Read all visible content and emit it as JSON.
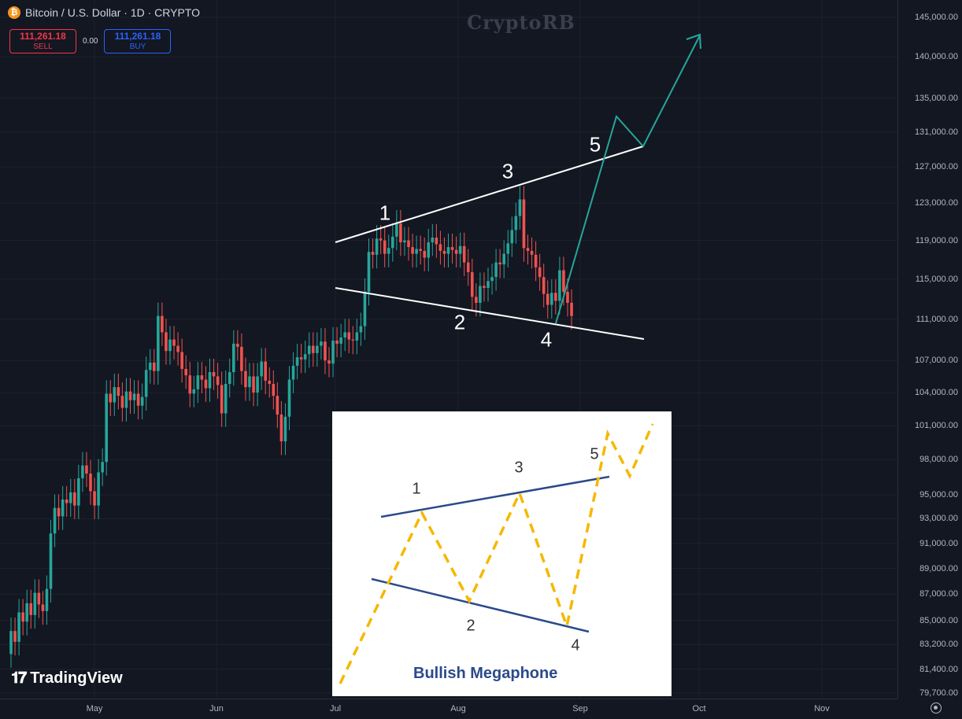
{
  "header": {
    "symbol_icon": "bitcoin-icon",
    "icon_glyph": "₿",
    "title": "Bitcoin / U.S. Dollar · 1D · CRYPTO"
  },
  "trade": {
    "sell_price": "111,261.18",
    "sell_label": "SELL",
    "spread": "0.00",
    "buy_price": "111,261.18",
    "buy_label": "BUY"
  },
  "watermark": "CryptoRB",
  "branding": "TradingView",
  "price_axis": [
    {
      "label": "145,000.00",
      "value": 145000
    },
    {
      "label": "140,000.00",
      "value": 140000
    },
    {
      "label": "135,000.00",
      "value": 135000
    },
    {
      "label": "131,000.00",
      "value": 131000
    },
    {
      "label": "127,000.00",
      "value": 127000
    },
    {
      "label": "123,000.00",
      "value": 123000
    },
    {
      "label": "119,000.00",
      "value": 119000
    },
    {
      "label": "115,000.00",
      "value": 115000
    },
    {
      "label": "111,000.00",
      "value": 111000
    },
    {
      "label": "107,000.00",
      "value": 107000
    },
    {
      "label": "104,000.00",
      "value": 104000
    },
    {
      "label": "101,000.00",
      "value": 101000
    },
    {
      "label": "98,000.00",
      "value": 98000
    },
    {
      "label": "95,000.00",
      "value": 95000
    },
    {
      "label": "93,000.00",
      "value": 93000
    },
    {
      "label": "91,000.00",
      "value": 91000
    },
    {
      "label": "89,000.00",
      "value": 89000
    },
    {
      "label": "87,000.00",
      "value": 87000
    },
    {
      "label": "85,000.00",
      "value": 85000
    },
    {
      "label": "83,200.00",
      "value": 83200
    },
    {
      "label": "81,400.00",
      "value": 81400
    },
    {
      "label": "79,700.00",
      "value": 79700
    }
  ],
  "time_axis": [
    "May",
    "Jun",
    "Jul",
    "Aug",
    "Sep",
    "Oct",
    "Nov"
  ],
  "wave_labels": [
    "1",
    "2",
    "3",
    "4",
    "5"
  ],
  "inset": {
    "title": "Bullish Megaphone",
    "labels": [
      "1",
      "2",
      "3",
      "4",
      "5"
    ]
  },
  "colors": {
    "background": "#131722",
    "up": "#26a69a",
    "down": "#ef5350",
    "projection": "#26a69a",
    "trendline": "#ffffff",
    "inset_dash": "#f5b800",
    "inset_line": "#2b4a8b"
  },
  "chart_data": {
    "type": "candlestick",
    "title": "Bitcoin / U.S. Dollar · 1D · CRYPTO",
    "ylim": [
      79700,
      145000
    ],
    "y_scale": "log",
    "x_ticks": [
      "May",
      "Jun",
      "Jul",
      "Aug",
      "Sep",
      "Oct",
      "Nov"
    ],
    "series": [
      {
        "name": "BTCUSD",
        "values": [
          [
            82500,
            84200
          ],
          [
            84200,
            83400
          ],
          [
            83400,
            85600
          ],
          [
            85600,
            84900
          ],
          [
            84900,
            86300
          ],
          [
            86300,
            85400
          ],
          [
            85400,
            87100
          ],
          [
            87100,
            86200
          ],
          [
            86200,
            85700
          ],
          [
            85700,
            87400
          ],
          [
            87400,
            91800
          ],
          [
            91800,
            93900
          ],
          [
            93900,
            93200
          ],
          [
            93200,
            94600
          ],
          [
            94600,
            94300
          ],
          [
            94300,
            95200
          ],
          [
            95200,
            94100
          ],
          [
            94100,
            96400
          ],
          [
            96400,
            97500
          ],
          [
            97500,
            96800
          ],
          [
            96800,
            95300
          ],
          [
            95300,
            94100
          ],
          [
            94100,
            96900
          ],
          [
            96900,
            97800
          ],
          [
            97800,
            103900
          ],
          [
            103900,
            103100
          ],
          [
            103100,
            104500
          ],
          [
            104500,
            103700
          ],
          [
            103700,
            102600
          ],
          [
            102600,
            104100
          ],
          [
            104100,
            103300
          ],
          [
            103300,
            103900
          ],
          [
            103900,
            102800
          ],
          [
            102800,
            103600
          ],
          [
            103600,
            106100
          ],
          [
            106100,
            106800
          ],
          [
            106800,
            106000
          ],
          [
            106000,
            111300
          ],
          [
            111300,
            109700
          ],
          [
            109700,
            107900
          ],
          [
            107900,
            109000
          ],
          [
            109000,
            108400
          ],
          [
            108400,
            107800
          ],
          [
            107800,
            106200
          ],
          [
            106200,
            105600
          ],
          [
            105600,
            103900
          ],
          [
            103900,
            104300
          ],
          [
            104300,
            105600
          ],
          [
            105600,
            105200
          ],
          [
            105200,
            104400
          ],
          [
            104400,
            105900
          ],
          [
            105900,
            105500
          ],
          [
            105500,
            104700
          ],
          [
            104700,
            102100
          ],
          [
            102100,
            104800
          ],
          [
            104800,
            105900
          ],
          [
            105900,
            108600
          ],
          [
            108600,
            108300
          ],
          [
            108300,
            106000
          ],
          [
            106000,
            104500
          ],
          [
            104500,
            105500
          ],
          [
            105500,
            104000
          ],
          [
            104000,
            105500
          ],
          [
            105500,
            106900
          ],
          [
            106900,
            105100
          ],
          [
            105100,
            104800
          ],
          [
            104800,
            103700
          ],
          [
            103700,
            102000
          ],
          [
            102000,
            99600
          ],
          [
            99600,
            101800
          ],
          [
            101800,
            105200
          ],
          [
            105200,
            106500
          ],
          [
            106500,
            107300
          ],
          [
            107300,
            107100
          ],
          [
            107100,
            107600
          ],
          [
            107600,
            108400
          ],
          [
            108400,
            107700
          ],
          [
            107700,
            108400
          ],
          [
            108400,
            108800
          ],
          [
            108800,
            107000
          ],
          [
            107000,
            106700
          ],
          [
            106700,
            108900
          ],
          [
            108900,
            108600
          ],
          [
            108600,
            109200
          ],
          [
            109200,
            109700
          ],
          [
            109700,
            109000
          ],
          [
            109000,
            108900
          ],
          [
            108900,
            109700
          ],
          [
            109700,
            110300
          ],
          [
            110300,
            113700
          ],
          [
            113700,
            117800
          ],
          [
            117800,
            117500
          ],
          [
            117500,
            119200
          ],
          [
            119200,
            119000
          ],
          [
            119000,
            117600
          ],
          [
            117600,
            118200
          ],
          [
            118200,
            119400
          ],
          [
            119400,
            120800
          ],
          [
            120800,
            118800
          ],
          [
            118800,
            119000
          ],
          [
            119000,
            118300
          ],
          [
            118300,
            117600
          ],
          [
            117600,
            118100
          ],
          [
            118100,
            117900
          ],
          [
            117900,
            117200
          ],
          [
            117200,
            118800
          ],
          [
            118800,
            119300
          ],
          [
            119300,
            118600
          ],
          [
            118600,
            117900
          ],
          [
            117900,
            117600
          ],
          [
            117600,
            118300
          ],
          [
            118300,
            118000
          ],
          [
            118000,
            117600
          ],
          [
            117600,
            118400
          ],
          [
            118400,
            116700
          ],
          [
            116700,
            115700
          ],
          [
            115700,
            113200
          ],
          [
            113200,
            112600
          ],
          [
            112600,
            114300
          ],
          [
            114300,
            114100
          ],
          [
            114100,
            114800
          ],
          [
            114800,
            115200
          ],
          [
            115200,
            116700
          ],
          [
            116700,
            116500
          ],
          [
            116500,
            117600
          ],
          [
            117600,
            118700
          ],
          [
            118700,
            120100
          ],
          [
            120100,
            121600
          ],
          [
            121600,
            123400
          ],
          [
            123400,
            118200
          ],
          [
            118200,
            117900
          ],
          [
            117900,
            117500
          ],
          [
            117500,
            116200
          ],
          [
            116200,
            115200
          ],
          [
            115200,
            113500
          ],
          [
            113500,
            112400
          ],
          [
            112400,
            113600
          ],
          [
            113600,
            112800
          ],
          [
            112800,
            115900
          ],
          [
            115900,
            113700
          ],
          [
            113700,
            112600
          ],
          [
            112600,
            111300
          ]
        ]
      }
    ],
    "annotations": [
      {
        "label": "1",
        "x": "mid-Jul",
        "y": 121500
      },
      {
        "label": "2",
        "x": "early Aug",
        "y": 111300
      },
      {
        "label": "3",
        "x": "mid-Aug",
        "y": 125500
      },
      {
        "label": "4",
        "x": "late Aug",
        "y": 109500
      },
      {
        "label": "5",
        "x": "early Sep",
        "y": 129500
      }
    ]
  }
}
